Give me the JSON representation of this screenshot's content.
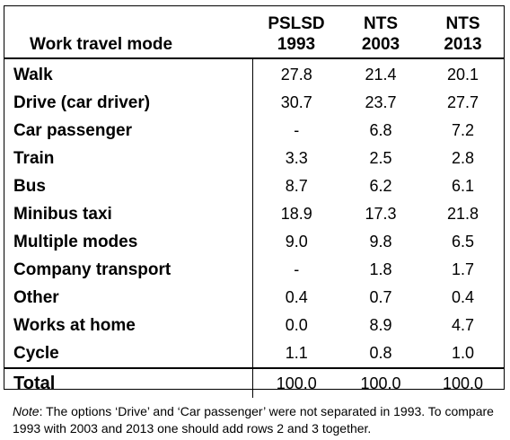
{
  "table": {
    "header": {
      "mode_label": "Work travel mode",
      "columns": [
        {
          "line1": "PSLSD",
          "line2": "1993"
        },
        {
          "line1": "NTS",
          "line2": "2003"
        },
        {
          "line1": "NTS",
          "line2": "2013"
        }
      ]
    },
    "rows": [
      {
        "mode": "Walk",
        "v1993": "27.8",
        "v2003": "21.4",
        "v2013": "20.1"
      },
      {
        "mode": "Drive (car driver)",
        "v1993": "30.7",
        "v2003": "23.7",
        "v2013": "27.7"
      },
      {
        "mode": "Car passenger",
        "v1993": "-",
        "v2003": "6.8",
        "v2013": "7.2"
      },
      {
        "mode": "Train",
        "v1993": "3.3",
        "v2003": "2.5",
        "v2013": "2.8"
      },
      {
        "mode": "Bus",
        "v1993": "8.7",
        "v2003": "6.2",
        "v2013": "6.1"
      },
      {
        "mode": "Minibus taxi",
        "v1993": "18.9",
        "v2003": "17.3",
        "v2013": "21.8"
      },
      {
        "mode": "Multiple modes",
        "v1993": "9.0",
        "v2003": "9.8",
        "v2013": "6.5"
      },
      {
        "mode": "Company transport",
        "v1993": "-",
        "v2003": "1.8",
        "v2013": "1.7"
      },
      {
        "mode": "Other",
        "v1993": "0.4",
        "v2003": "0.7",
        "v2013": "0.4"
      },
      {
        "mode": "Works at home",
        "v1993": "0.0",
        "v2003": "8.9",
        "v2013": "4.7"
      },
      {
        "mode": "Cycle",
        "v1993": "1.1",
        "v2003": "0.8",
        "v2013": "1.0"
      }
    ],
    "total": {
      "mode": "Total",
      "v1993": "100.0",
      "v2003": "100.0",
      "v2013": "100.0"
    }
  },
  "note": {
    "label": "Note",
    "text": ": The options ‘Drive’ and ‘Car passenger’ were not separated in 1993. To compare 1993 with 2003 and 2013 one should add rows 2 and 3 together."
  }
}
